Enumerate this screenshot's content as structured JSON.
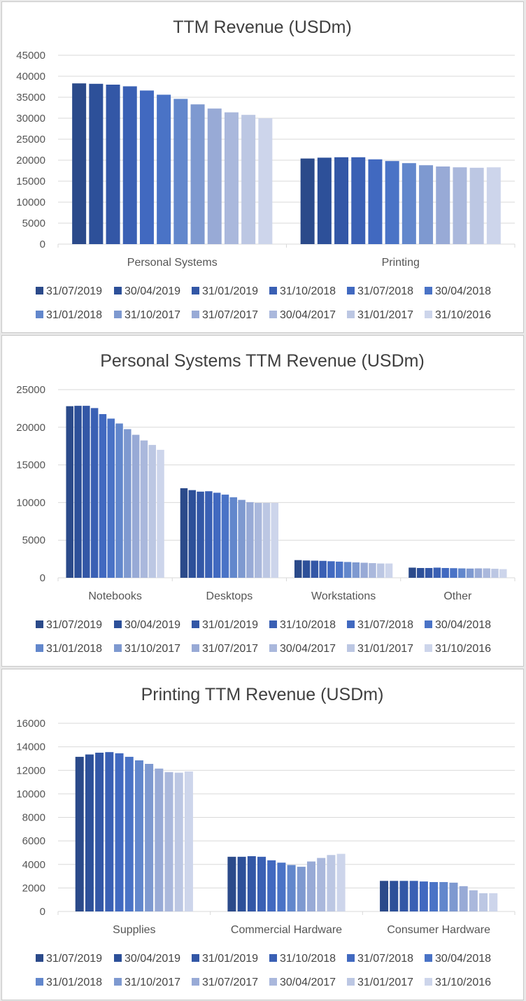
{
  "legend_dates": [
    "31/07/2019",
    "30/04/2019",
    "31/01/2019",
    "31/10/2018",
    "31/07/2018",
    "30/04/2018",
    "31/01/2018",
    "31/10/2017",
    "31/07/2017",
    "30/04/2017",
    "31/01/2017",
    "31/10/2016"
  ],
  "colors": [
    "#2b4a8a",
    "#2d5099",
    "#3357a6",
    "#3a60b4",
    "#4169c0",
    "#4a73c6",
    "#6287cc",
    "#7e99d0",
    "#98aad6",
    "#aab8dc",
    "#bcc7e3",
    "#cdd5eb"
  ],
  "chart_data": [
    {
      "type": "bar",
      "title": "TTM Revenue (USDm)",
      "categories": [
        "Personal Systems",
        "Printing"
      ],
      "yticks": [
        "0",
        "5000",
        "10000",
        "15000",
        "20000",
        "25000",
        "30000",
        "35000",
        "40000",
        "45000"
      ],
      "ylim": [
        0,
        45000
      ],
      "legend_position": "bottom",
      "series": [
        {
          "name": "31/07/2019",
          "values": [
            38300,
            20400
          ]
        },
        {
          "name": "30/04/2019",
          "values": [
            38200,
            20600
          ]
        },
        {
          "name": "31/01/2019",
          "values": [
            38000,
            20700
          ]
        },
        {
          "name": "31/10/2018",
          "values": [
            37600,
            20700
          ]
        },
        {
          "name": "31/07/2018",
          "values": [
            36600,
            20200
          ]
        },
        {
          "name": "30/04/2018",
          "values": [
            35600,
            19800
          ]
        },
        {
          "name": "31/01/2018",
          "values": [
            34600,
            19300
          ]
        },
        {
          "name": "31/10/2017",
          "values": [
            33300,
            18800
          ]
        },
        {
          "name": "31/07/2017",
          "values": [
            32300,
            18500
          ]
        },
        {
          "name": "30/04/2017",
          "values": [
            31400,
            18300
          ]
        },
        {
          "name": "31/01/2017",
          "values": [
            30800,
            18200
          ]
        },
        {
          "name": "31/10/2016",
          "values": [
            30000,
            18300
          ]
        }
      ]
    },
    {
      "type": "bar",
      "title": "Personal Systems TTM Revenue (USDm)",
      "categories": [
        "Notebooks",
        "Desktops",
        "Workstations",
        "Other"
      ],
      "yticks": [
        "0",
        "5000",
        "10000",
        "15000",
        "20000",
        "25000"
      ],
      "ylim": [
        0,
        25000
      ],
      "legend_position": "bottom",
      "series": [
        {
          "name": "31/07/2019",
          "values": [
            22800,
            11900,
            2350,
            1350
          ]
        },
        {
          "name": "30/04/2019",
          "values": [
            22850,
            11650,
            2300,
            1300
          ]
        },
        {
          "name": "31/01/2019",
          "values": [
            22850,
            11450,
            2280,
            1300
          ]
        },
        {
          "name": "31/10/2018",
          "values": [
            22550,
            11500,
            2250,
            1350
          ]
        },
        {
          "name": "31/07/2018",
          "values": [
            21750,
            11300,
            2200,
            1300
          ]
        },
        {
          "name": "30/04/2018",
          "values": [
            21150,
            11050,
            2150,
            1280
          ]
        },
        {
          "name": "31/01/2018",
          "values": [
            20500,
            10700,
            2100,
            1250
          ]
        },
        {
          "name": "31/10/2017",
          "values": [
            19750,
            10350,
            2050,
            1230
          ]
        },
        {
          "name": "31/07/2017",
          "values": [
            19000,
            10050,
            2000,
            1250
          ]
        },
        {
          "name": "30/04/2017",
          "values": [
            18250,
            9950,
            1950,
            1250
          ]
        },
        {
          "name": "31/01/2017",
          "values": [
            17650,
            9950,
            1900,
            1200
          ]
        },
        {
          "name": "31/10/2016",
          "values": [
            17000,
            9950,
            1900,
            1150
          ]
        }
      ]
    },
    {
      "type": "bar",
      "title": "Printing TTM Revenue (USDm)",
      "categories": [
        "Supplies",
        "Commercial Hardware",
        "Consumer Hardware"
      ],
      "yticks": [
        "0",
        "2000",
        "4000",
        "6000",
        "8000",
        "10000",
        "12000",
        "14000",
        "16000"
      ],
      "ylim": [
        0,
        16000
      ],
      "legend_position": "bottom",
      "series": [
        {
          "name": "31/07/2019",
          "values": [
            13150,
            4650,
            2600
          ]
        },
        {
          "name": "30/04/2019",
          "values": [
            13350,
            4650,
            2600
          ]
        },
        {
          "name": "31/01/2019",
          "values": [
            13500,
            4700,
            2600
          ]
        },
        {
          "name": "31/10/2018",
          "values": [
            13550,
            4650,
            2600
          ]
        },
        {
          "name": "31/07/2018",
          "values": [
            13450,
            4350,
            2550
          ]
        },
        {
          "name": "30/04/2018",
          "values": [
            13150,
            4150,
            2500
          ]
        },
        {
          "name": "31/01/2018",
          "values": [
            12850,
            3950,
            2500
          ]
        },
        {
          "name": "31/10/2017",
          "values": [
            12550,
            3800,
            2450
          ]
        },
        {
          "name": "31/07/2017",
          "values": [
            12150,
            4250,
            2150
          ]
        },
        {
          "name": "30/04/2017",
          "values": [
            11850,
            4550,
            1800
          ]
        },
        {
          "name": "31/01/2017",
          "values": [
            11800,
            4800,
            1550
          ]
        },
        {
          "name": "31/10/2016",
          "values": [
            11900,
            4900,
            1550
          ]
        }
      ]
    }
  ]
}
